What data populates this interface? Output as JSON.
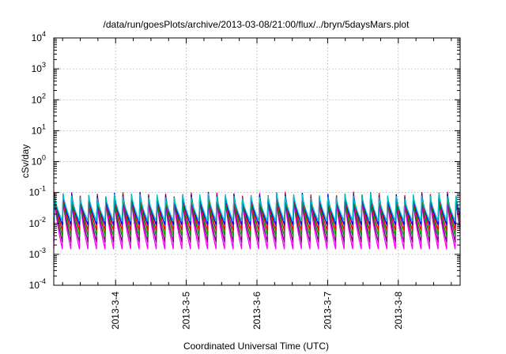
{
  "chart_data": {
    "type": "line",
    "title": "/data/run/goesPlots/archive/2013-03-08/21:00/flux/../bryn/5daysMars.plot",
    "xlabel": "Coordinated Universal Time (UTC)",
    "ylabel": "cSv/day",
    "xlim": [
      "2013-03-03 03:00",
      "2013-03-08 21:00"
    ],
    "x_ticks": [
      "2013-3-4",
      "2013-3-5",
      "2013-3-6",
      "2013-3-7",
      "2013-3-8"
    ],
    "y_scale": "log",
    "ylim": [
      0.0001,
      10000
    ],
    "y_ticks": [
      {
        "base": "10",
        "exp": "-4"
      },
      {
        "base": "10",
        "exp": "-3"
      },
      {
        "base": "10",
        "exp": "-2"
      },
      {
        "base": "10",
        "exp": "-1"
      },
      {
        "base": "10",
        "exp": "0"
      },
      {
        "base": "10",
        "exp": "1"
      },
      {
        "base": "10",
        "exp": "2"
      },
      {
        "base": "10",
        "exp": "3"
      },
      {
        "base": "10",
        "exp": "4"
      }
    ],
    "grid": true,
    "legend": "none",
    "oscillation_period_hours": 2.9,
    "series": [
      {
        "color": "#ff00ff",
        "peak": 0.06,
        "trough": 0.0015
      },
      {
        "color": "#800080",
        "peak": 0.07,
        "trough": 0.0025
      },
      {
        "color": "#00a000",
        "peak": 0.08,
        "trough": 0.004
      },
      {
        "color": "#ff0000",
        "peak": 0.09,
        "trough": 0.006
      },
      {
        "color": "#0000ff",
        "peak": 0.085,
        "trough": 0.009
      },
      {
        "color": "#00c0c0",
        "peak": 0.08,
        "trough": 0.012
      }
    ]
  }
}
